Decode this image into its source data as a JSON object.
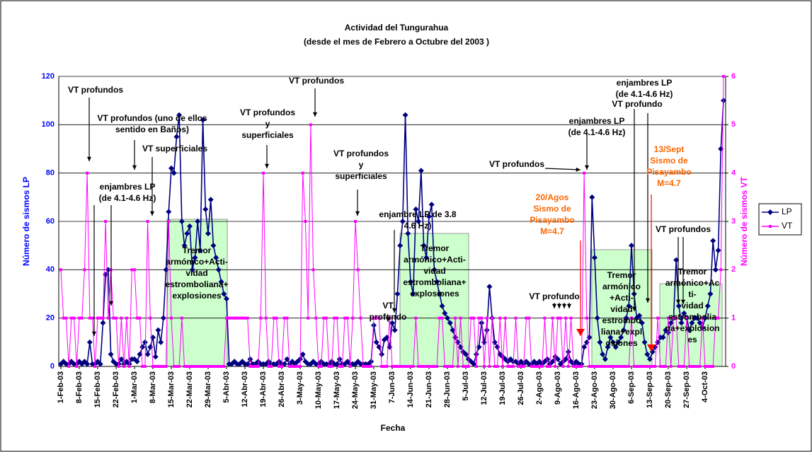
{
  "chart_data": {
    "type": "line",
    "title": [
      "Actividad del Tungurahua",
      "(desde el mes de Febrero a Octubre del 2003 )"
    ],
    "x_label": "Fecha",
    "y_label": "Número de sismos LP",
    "y2_label": "Número de sismos VT",
    "categories": [
      "1-Feb-03",
      null,
      null,
      null,
      null,
      null,
      null,
      "8-Feb-03",
      null,
      null,
      null,
      null,
      null,
      null,
      "15-Feb-03",
      null,
      null,
      null,
      null,
      null,
      null,
      "22-Feb-03",
      null,
      null,
      null,
      null,
      null,
      null,
      "1-Mar-03",
      null,
      null,
      null,
      null,
      null,
      null,
      "8-Mar-03",
      null,
      null,
      null,
      null,
      null,
      null,
      "15-Mar-03",
      null,
      null,
      null,
      null,
      null,
      null,
      "22-Mar-03",
      null,
      null,
      null,
      null,
      null,
      null,
      "29-Mar-03",
      null,
      null,
      null,
      null,
      null,
      null,
      "5-Abr-03",
      null,
      null,
      null,
      null,
      null,
      null,
      "12-Abr-03",
      null,
      null,
      null,
      null,
      null,
      null,
      "19-Abr-03",
      null,
      null,
      null,
      null,
      null,
      null,
      "26-Abr-03",
      null,
      null,
      null,
      null,
      null,
      null,
      "3-May-03",
      null,
      null,
      null,
      null,
      null,
      null,
      "10-May-03",
      null,
      null,
      null,
      null,
      null,
      null,
      "17-May-03",
      null,
      null,
      null,
      null,
      null,
      null,
      "24-May-03",
      null,
      null,
      null,
      null,
      null,
      null,
      "31-May-03",
      null,
      null,
      null,
      null,
      null,
      null,
      "7-Jun-03",
      null,
      null,
      null,
      null,
      null,
      null,
      "14-Jun-03",
      null,
      null,
      null,
      null,
      null,
      null,
      "21-Jun-03",
      null,
      null,
      null,
      null,
      null,
      null,
      "28-Jun-03",
      null,
      null,
      null,
      null,
      null,
      null,
      "5-Jul-03",
      null,
      null,
      null,
      null,
      null,
      null,
      "12-Jul-03",
      null,
      null,
      null,
      null,
      null,
      null,
      "19-Jul-03",
      null,
      null,
      null,
      null,
      null,
      null,
      "26-Jul-03",
      null,
      null,
      null,
      null,
      null,
      null,
      "2-Ago-03",
      null,
      null,
      null,
      null,
      null,
      null,
      "9-Ago-03",
      null,
      null,
      null,
      null,
      null,
      null,
      "16-Ago-03",
      null,
      null,
      null,
      null,
      null,
      null,
      "23-Ago-03",
      null,
      null,
      null,
      null,
      null,
      null,
      "30-Ago-03",
      null,
      null,
      null,
      null,
      null,
      null,
      "6-Sep-03",
      null,
      null,
      null,
      null,
      null,
      null,
      "13-Sep-03",
      null,
      null,
      null,
      null,
      null,
      null,
      "20-Sep-03",
      null,
      null,
      null,
      null,
      null,
      null,
      "27-Sep-03",
      null,
      null,
      null,
      null,
      null,
      null,
      "4-Oct-03",
      null,
      null,
      null,
      null,
      null,
      null,
      null
    ],
    "series": [
      {
        "name": "LP",
        "color": "#000080",
        "axis": "y",
        "values": [
          1,
          2,
          1,
          1,
          2,
          1,
          1,
          2,
          1,
          2,
          1,
          10,
          1,
          1,
          2,
          1,
          18,
          38,
          40,
          5,
          2,
          1,
          1,
          3,
          1,
          2,
          1,
          3,
          3,
          2,
          5,
          8,
          10,
          5,
          8,
          12,
          4,
          15,
          10,
          20,
          40,
          64,
          82,
          80,
          95,
          104,
          60,
          50,
          55,
          58,
          40,
          45,
          60,
          48,
          102,
          65,
          55,
          69,
          50,
          45,
          40,
          35,
          30,
          28,
          1,
          1,
          2,
          1,
          1,
          2,
          1,
          1,
          3,
          1,
          1,
          2,
          1,
          1,
          1,
          2,
          1,
          1,
          1,
          2,
          1,
          1,
          3,
          1,
          2,
          1,
          2,
          3,
          5,
          2,
          1,
          1,
          2,
          1,
          1,
          2,
          1,
          1,
          1,
          2,
          1,
          1,
          3,
          1,
          1,
          2,
          1,
          1,
          1,
          2,
          1,
          1,
          1,
          1,
          2,
          17,
          10,
          8,
          5,
          11,
          12,
          8,
          18,
          15,
          30,
          50,
          60,
          104,
          55,
          35,
          30,
          65,
          60,
          81,
          50,
          45,
          62,
          67,
          40,
          35,
          30,
          25,
          22,
          20,
          18,
          15,
          12,
          10,
          8,
          6,
          5,
          3,
          2,
          1,
          5,
          8,
          18,
          10,
          15,
          33,
          20,
          10,
          8,
          5,
          4,
          3,
          2,
          3,
          2,
          2,
          1,
          2,
          1,
          2,
          1,
          1,
          2,
          1,
          2,
          1,
          2,
          3,
          1,
          2,
          4,
          3,
          1,
          2,
          3,
          6,
          2,
          1,
          2,
          1,
          1,
          8,
          10,
          12,
          70,
          45,
          20,
          10,
          5,
          3,
          8,
          12,
          10,
          8,
          10,
          12,
          15,
          20,
          25,
          50,
          30,
          20,
          21,
          18,
          10,
          5,
          3,
          6,
          8,
          10,
          12,
          12,
          15,
          14,
          18,
          20,
          44,
          25,
          18,
          22,
          20,
          15,
          18,
          20,
          20,
          18,
          16,
          20,
          25,
          30,
          52,
          40,
          48,
          90,
          110
        ]
      },
      {
        "name": "VT",
        "color": "#ff00ff",
        "axis": "y2",
        "values": [
          2,
          1,
          1,
          0,
          1,
          1,
          0,
          1,
          1,
          2,
          4,
          1,
          1,
          0,
          1,
          1,
          1,
          3,
          1,
          2,
          1,
          1,
          0,
          1,
          0,
          1,
          0,
          2,
          2,
          1,
          1,
          0,
          0,
          3,
          1,
          0,
          0,
          0,
          0,
          0,
          0,
          3,
          1,
          0,
          0,
          0,
          1,
          0,
          0,
          0,
          0,
          0,
          0,
          0,
          0,
          0,
          0,
          0,
          0,
          0,
          0,
          0,
          0,
          1,
          1,
          1,
          1,
          1,
          1,
          1,
          1,
          1,
          0,
          0,
          0,
          0,
          1,
          4,
          1,
          0,
          0,
          1,
          1,
          0,
          0,
          1,
          1,
          0,
          0,
          0,
          0,
          0,
          4,
          3,
          1,
          5,
          2,
          1,
          0,
          0,
          1,
          1,
          0,
          0,
          1,
          1,
          0,
          0,
          1,
          1,
          0,
          1,
          3,
          2,
          1,
          0,
          0,
          0,
          0,
          1,
          1,
          1,
          0,
          0,
          0,
          1,
          0,
          0,
          0,
          0,
          0,
          0,
          0,
          0,
          0,
          1,
          0,
          0,
          0,
          0,
          0,
          0,
          0,
          0,
          1,
          1,
          0,
          0,
          0,
          0,
          1,
          0,
          1,
          0,
          0,
          0,
          1,
          1,
          0,
          1,
          1,
          0,
          1,
          0,
          1,
          0,
          0,
          1,
          0,
          1,
          0,
          0,
          0,
          1,
          0,
          0,
          0,
          1,
          1,
          0,
          0,
          0,
          0,
          0,
          1,
          0,
          0,
          1,
          0,
          1,
          1,
          0,
          1,
          0,
          1,
          0,
          0,
          0,
          0,
          4,
          1,
          0,
          0,
          0,
          0,
          0,
          0,
          0,
          0,
          0,
          0,
          0,
          0,
          0,
          0,
          0,
          0,
          1,
          0,
          0,
          0,
          0,
          0,
          0,
          0,
          0,
          0,
          1,
          0,
          0,
          0,
          1,
          0,
          1,
          1,
          0,
          0,
          0,
          1,
          0,
          0,
          0,
          0,
          0,
          1,
          0,
          0,
          0,
          0,
          1,
          1,
          2,
          6
        ]
      }
    ],
    "ylim": [
      0,
      120
    ],
    "yticks": [
      0,
      20,
      40,
      60,
      80,
      100,
      120
    ],
    "y2lim": [
      0,
      6
    ],
    "y2ticks": [
      0,
      1,
      2,
      3,
      4,
      5,
      6
    ],
    "grid": true,
    "legend": "right",
    "annotations": [
      {
        "lines": [
          "VT profundos"
        ],
        "color": "#000000"
      },
      {
        "lines": [
          "VT profundos (uno de ellos",
          "sentido en Baños)"
        ],
        "color": "#000000"
      },
      {
        "lines": [
          "VT superficiales"
        ],
        "color": "#000000"
      },
      {
        "lines": [
          "enjambres LP",
          "(de 4.1-4.6 Hz)"
        ],
        "color": "#000000"
      },
      {
        "lines": [
          "VT profundos",
          "y",
          "superficiales"
        ],
        "color": "#000000"
      },
      {
        "lines": [
          "VT profundos"
        ],
        "color": "#000000"
      },
      {
        "lines": [
          "VT profundos",
          "y",
          "superficiales"
        ],
        "color": "#000000"
      },
      {
        "lines": [
          "enjambre LP de 3.8",
          "4.6 Hz)"
        ],
        "color": "#000000"
      },
      {
        "lines": [
          "VT",
          "profundo"
        ],
        "color": "#000000"
      },
      {
        "lines": [
          "Tremor",
          "armónico+Acti-",
          "vidad",
          "estromboliana+",
          "explosiones"
        ],
        "color": "#000000"
      },
      {
        "lines": [
          "Tremor",
          "armónico+Acti-",
          "vidad",
          "estromboliana+",
          "explosiones"
        ],
        "color": "#000000"
      },
      {
        "lines": [
          "VT profundos"
        ],
        "color": "#000000"
      },
      {
        "lines": [
          "VT profundo"
        ],
        "color": "#000000"
      },
      {
        "lines": [
          "enjambres LP",
          "(de 4.1-4.6 Hz)"
        ],
        "color": "#000000"
      },
      {
        "lines": [
          "enjambres LP",
          "(de 4.1-4.6 Hz)"
        ],
        "color": "#000000"
      },
      {
        "lines": [
          "VT profundo"
        ],
        "color": "#000000"
      },
      {
        "lines": [
          "20/Agos",
          "Sismo de",
          "Pisayambo",
          "M=4.7"
        ],
        "color": "#ff6600"
      },
      {
        "lines": [
          "13/Sept",
          "Sismo de",
          "Pisayambo",
          "M=4.7"
        ],
        "color": "#ff6600"
      },
      {
        "lines": [
          "Tremor",
          "armónico",
          "+Acti-",
          "vidad",
          "estrombo",
          "liana+expl",
          "osiones"
        ],
        "color": "#000000"
      },
      {
        "lines": [
          "VT profundos"
        ],
        "color": "#000000"
      },
      {
        "lines": [
          "Tremor",
          "armónico+Ac",
          "ti-",
          "vidad",
          "estrombolia",
          "na+explosion",
          "es"
        ],
        "color": "#000000"
      }
    ]
  }
}
